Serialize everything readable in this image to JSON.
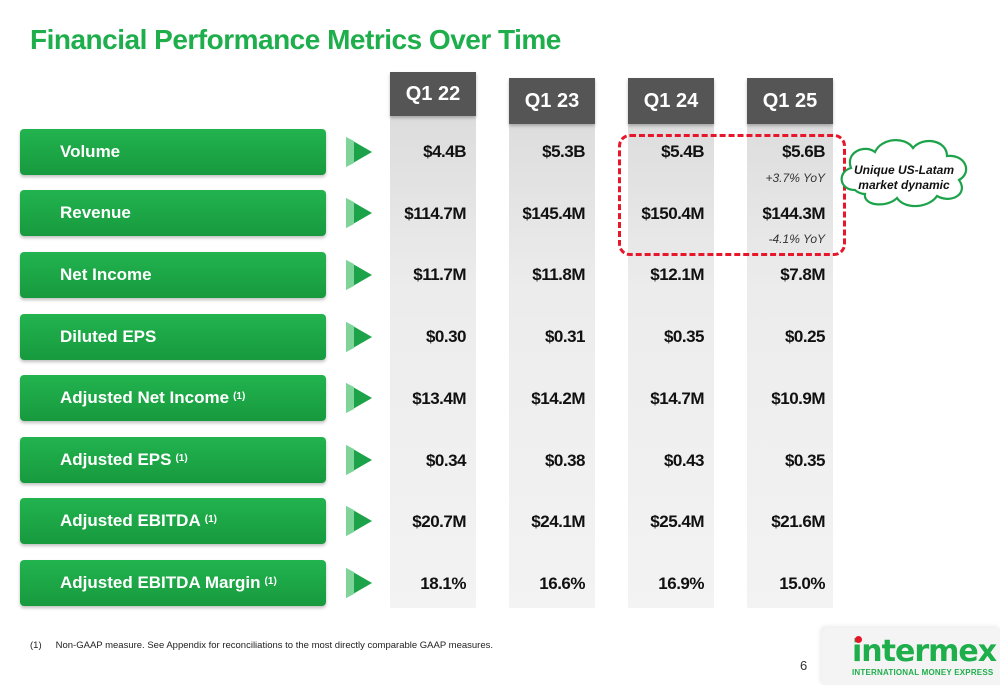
{
  "title": "Financial Performance Metrics Over Time",
  "columns": [
    {
      "label": "Q1 22"
    },
    {
      "label": "Q1 23"
    },
    {
      "label": "Q1 24"
    },
    {
      "label": "Q1 25"
    }
  ],
  "metrics": [
    {
      "label": "Volume",
      "footnote": "",
      "values": [
        "$4.4B",
        "$5.3B",
        "$5.4B",
        "$5.6B"
      ],
      "note": "+3.7% YoY"
    },
    {
      "label": "Revenue",
      "footnote": "",
      "values": [
        "$114.7M",
        "$145.4M",
        "$150.4M",
        "$144.3M"
      ],
      "note": "-4.1% YoY"
    },
    {
      "label": "Net Income",
      "footnote": "",
      "values": [
        "$11.7M",
        "$11.8M",
        "$12.1M",
        "$7.8M"
      ]
    },
    {
      "label": "Diluted EPS",
      "footnote": "",
      "values": [
        "$0.30",
        "$0.31",
        "$0.35",
        "$0.25"
      ]
    },
    {
      "label": "Adjusted Net Income",
      "footnote": "(1)",
      "values": [
        "$13.4M",
        "$14.2M",
        "$14.7M",
        "$10.9M"
      ]
    },
    {
      "label": "Adjusted EPS",
      "footnote": "(1)",
      "values": [
        "$0.34",
        "$0.38",
        "$0.43",
        "$0.35"
      ]
    },
    {
      "label": "Adjusted EBITDA",
      "footnote": "(1)",
      "values": [
        "$20.7M",
        "$24.1M",
        "$25.4M",
        "$21.6M"
      ]
    },
    {
      "label": "Adjusted EBITDA Margin",
      "footnote": "(1)",
      "values": [
        "18.1%",
        "16.6%",
        "16.9%",
        "15.0%"
      ]
    }
  ],
  "callout": {
    "line1": "Unique US-Latam",
    "line2": "market dynamic"
  },
  "footnote": {
    "number": "(1)",
    "text": "Non-GAAP measure. See Appendix for reconciliations to the most directly comparable GAAP measures."
  },
  "page_number": "6",
  "logo": {
    "word": "intermex",
    "tagline": "INTERNATIONAL MONEY EXPRESS"
  },
  "colors": {
    "brand_green": "#1eae4b",
    "header_gray": "#555555",
    "highlight_red": "#e8162b"
  }
}
